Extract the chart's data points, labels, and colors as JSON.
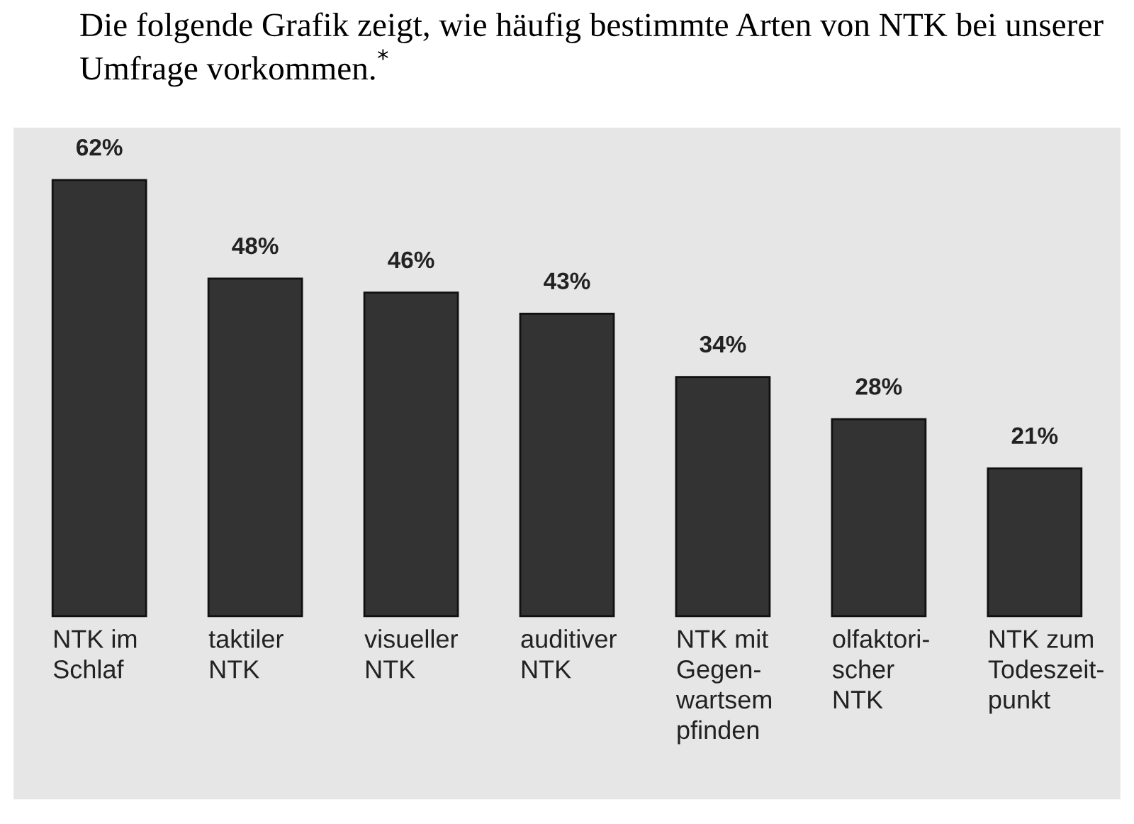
{
  "chart_data": {
    "type": "bar",
    "title": "Die folgende Grafik zeigt, wie häufig bestimmte Arten von NTK bei unserer Umfrage vorkommen.$^{*}$",
    "categories": [
      "NTK im\nSchlaf",
      "taktiler\nNTK",
      "visueller\nNTK",
      "auditiver\nNTK",
      "NTK mit\nGegen-\nwartsem\npfinden",
      "olfaktori-\nscher\nNTK",
      "NTK zum\nTodeszeit-\npunkt"
    ],
    "values": [
      62,
      48,
      46,
      43,
      34,
      28,
      21
    ],
    "value_labels": [
      "62%",
      "48%",
      "46%",
      "43%",
      "34%",
      "28%",
      "21%"
    ],
    "color": "#333333"
  }
}
